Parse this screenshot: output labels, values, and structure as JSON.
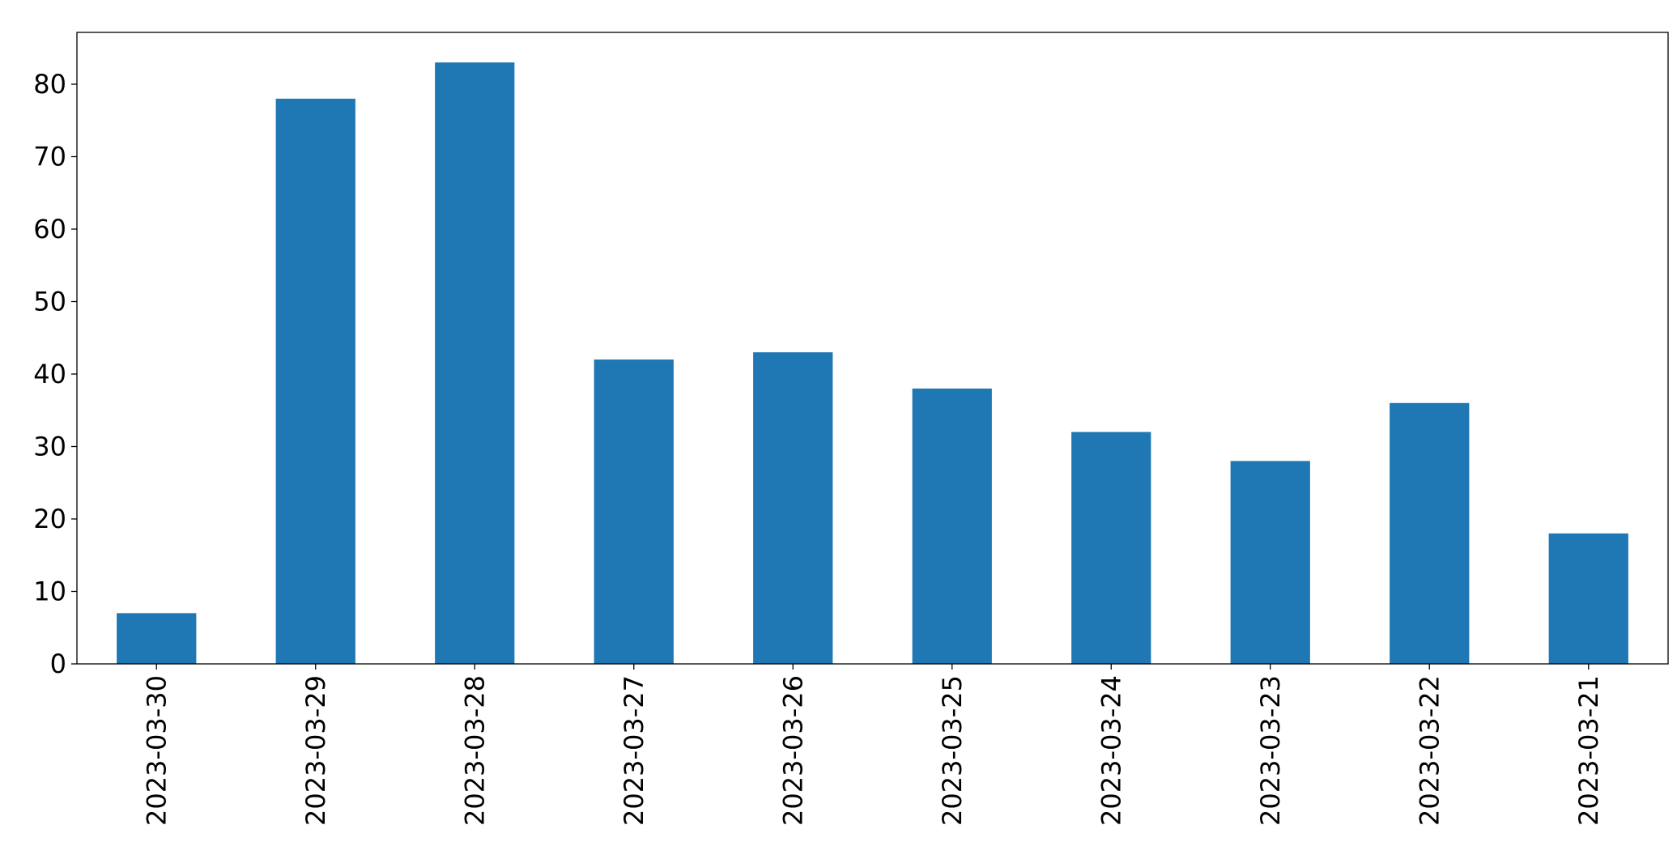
{
  "chart_data": {
    "type": "bar",
    "categories": [
      "2023-03-30",
      "2023-03-29",
      "2023-03-28",
      "2023-03-27",
      "2023-03-26",
      "2023-03-25",
      "2023-03-24",
      "2023-03-23",
      "2023-03-22",
      "2023-03-21"
    ],
    "values": [
      7,
      78,
      83,
      42,
      43,
      38,
      32,
      28,
      36,
      18
    ],
    "color": "#1f77b4",
    "ylim": [
      0,
      87.15
    ],
    "yticks": [
      0,
      10,
      20,
      30,
      40,
      50,
      60,
      70,
      80
    ],
    "grid": false
  }
}
